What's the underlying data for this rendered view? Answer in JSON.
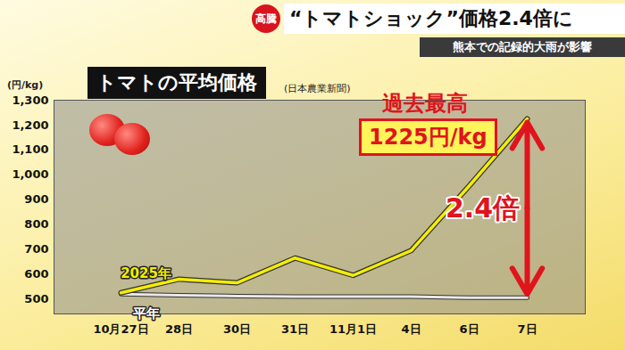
{
  "chart_data": {
    "type": "line",
    "badge": "高騰",
    "headline": "“トマトショック”価格2.4倍に",
    "subtitle": "熊本での記録的大雨が影響",
    "title": "トマトの平均価格",
    "source": "(日本農業新聞)",
    "y_label": "(円/kg)",
    "categories": [
      "10月27日",
      "28日",
      "30日",
      "31日",
      "11月1日",
      "4日",
      "6日",
      "7日"
    ],
    "series": [
      {
        "name": "2025年",
        "color": "#f5ee00",
        "values": [
          525,
          580,
          565,
          665,
          595,
          695,
          955,
          1225
        ]
      },
      {
        "name": "平年",
        "color": "#e8e8e8",
        "values": [
          520,
          515,
          512,
          510,
          510,
          510,
          505,
          505
        ]
      }
    ],
    "ylim": [
      440,
      1300
    ],
    "yticks": [
      500,
      600,
      700,
      800,
      900,
      1000,
      1100,
      1200,
      1300
    ],
    "grid": false,
    "annotations": [
      "過去最高",
      "1225円/kg",
      "2.4倍"
    ]
  }
}
